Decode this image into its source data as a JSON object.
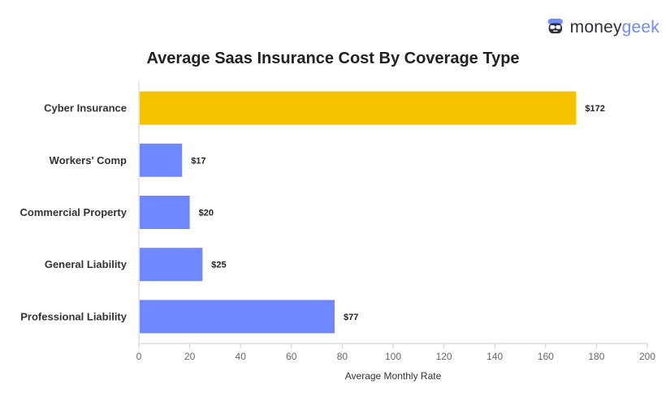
{
  "brand": {
    "logo_icon": "geek-face-icon",
    "word_part1": "money",
    "word_part2": "geek",
    "colors": {
      "dark": "#2f2f3a",
      "accent": "#6f8cff"
    }
  },
  "chart_data": {
    "type": "bar",
    "orientation": "horizontal",
    "title": "Average Saas Insurance Cost By Coverage Type",
    "xlabel": "Average Monthly Rate",
    "ylabel": "",
    "categories": [
      "Cyber Insurance",
      "Workers' Comp",
      "Commercial Property",
      "General Liability",
      "Professional Liability"
    ],
    "values": [
      172,
      17,
      20,
      25,
      77
    ],
    "value_labels": [
      "$172",
      "$17",
      "$20",
      "$25",
      "$77"
    ],
    "bar_colors": [
      "#f5c200",
      "#7088ff",
      "#7088ff",
      "#7088ff",
      "#7088ff"
    ],
    "xlim": [
      0,
      200
    ],
    "x_ticks": [
      0,
      20,
      40,
      60,
      80,
      100,
      120,
      140,
      160,
      180,
      200
    ],
    "grid": false,
    "legend": "none"
  }
}
